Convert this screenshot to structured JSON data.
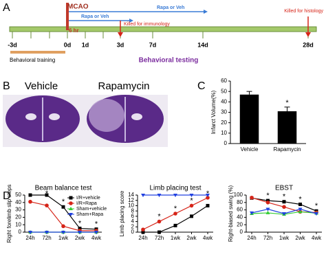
{
  "panel_labels": [
    "A",
    "B",
    "C",
    "D"
  ],
  "timeline": {
    "days": [
      "-3d",
      "0d",
      "1d",
      "3d",
      "7d",
      "14d",
      "28d"
    ],
    "event": "MCAO",
    "treatments": [
      "Rapa or Veh",
      "Rapa or Veh"
    ],
    "onset": "6 hr",
    "kills": [
      "Killed for immunology",
      "Killed for histology"
    ],
    "training": "Behavioral training",
    "testing": "Behavioral testing"
  },
  "panel_b": {
    "labels": [
      "Vehicle",
      "Rapamycin"
    ]
  },
  "chart_data": [
    {
      "type": "bar",
      "categories": [
        "Vehicle",
        "Rapamycin"
      ],
      "values": [
        47,
        31
      ],
      "errors": [
        3,
        4
      ],
      "significance": [
        null,
        "*"
      ],
      "color": "#000000",
      "y_label": "Infarct Volume(%)",
      "ylim": [
        0,
        60
      ],
      "yticks": [
        0,
        10,
        20,
        30,
        40,
        50,
        60
      ]
    },
    {
      "type": "line",
      "title": "Beam balance test",
      "y_label": "Right forelimb slip steps",
      "categories": [
        "24h",
        "72h",
        "1wk",
        "2wk",
        "4wk"
      ],
      "legend": true,
      "significance": [
        null,
        "*",
        "*",
        "*",
        "*"
      ],
      "series": [
        {
          "name": "I/R+vehicle",
          "color": "#000000",
          "marker": "square",
          "values": [
            50,
            50,
            34,
            5,
            4
          ]
        },
        {
          "name": "I/R+Rapa",
          "color": "#d62418",
          "marker": "circle",
          "values": [
            41,
            36,
            8,
            2,
            2
          ]
        },
        {
          "name": "Sham+vehicle",
          "color": "#33cc33",
          "marker": "triangle-up",
          "values": [
            0,
            0,
            0,
            0,
            0
          ]
        },
        {
          "name": "Sham+Rapa",
          "color": "#2040e0",
          "marker": "triangle-down",
          "values": [
            0,
            0,
            0,
            0,
            0
          ]
        }
      ],
      "ylim": [
        0,
        50
      ],
      "yticks": [
        0,
        10,
        20,
        30,
        40,
        50
      ]
    },
    {
      "type": "line",
      "title": "Limb placing test",
      "y_label": "Limb placing score",
      "categories": [
        "24h",
        "72h",
        "1wk",
        "2wk",
        "4wk"
      ],
      "legend": false,
      "significance": [
        null,
        "*",
        "*",
        "*",
        "*"
      ],
      "series": [
        {
          "name": "I/R+vehicle",
          "color": "#000000",
          "marker": "square",
          "values": [
            0,
            0,
            2.5,
            6,
            10
          ]
        },
        {
          "name": "I/R+Rapa",
          "color": "#d62418",
          "marker": "circle",
          "values": [
            1,
            4,
            7,
            10,
            13
          ]
        },
        {
          "name": "Sham+Rapa",
          "color": "#2040e0",
          "marker": "triangle-down",
          "values": [
            14,
            14,
            14,
            14,
            14
          ]
        }
      ],
      "ylim": [
        0,
        14
      ],
      "yticks": [
        0,
        2,
        4,
        6,
        8,
        10,
        12,
        14
      ]
    },
    {
      "type": "line",
      "title": "EBST",
      "y_label": "Right-biased swing (%)",
      "categories": [
        "24h",
        "72h",
        "1wk",
        "2wk",
        "4wk"
      ],
      "legend": false,
      "significance": [
        null,
        "*",
        "*",
        "*",
        "*"
      ],
      "series": [
        {
          "name": "I/R+vehicle",
          "color": "#000000",
          "marker": "square",
          "values": [
            92,
            85,
            82,
            75,
            57
          ]
        },
        {
          "name": "I/R+Rapa",
          "color": "#d62418",
          "marker": "circle",
          "values": [
            93,
            80,
            68,
            55,
            53
          ]
        },
        {
          "name": "Sham+vehicle",
          "color": "#33cc33",
          "marker": "triangle-up",
          "values": [
            50,
            52,
            48,
            55,
            51
          ]
        },
        {
          "name": "Sham+Rapa",
          "color": "#2040e0",
          "marker": "triangle-down",
          "values": [
            52,
            62,
            50,
            62,
            50
          ]
        }
      ],
      "ylim": [
        0,
        100
      ],
      "yticks": [
        0,
        20,
        40,
        60,
        80,
        100
      ]
    }
  ]
}
